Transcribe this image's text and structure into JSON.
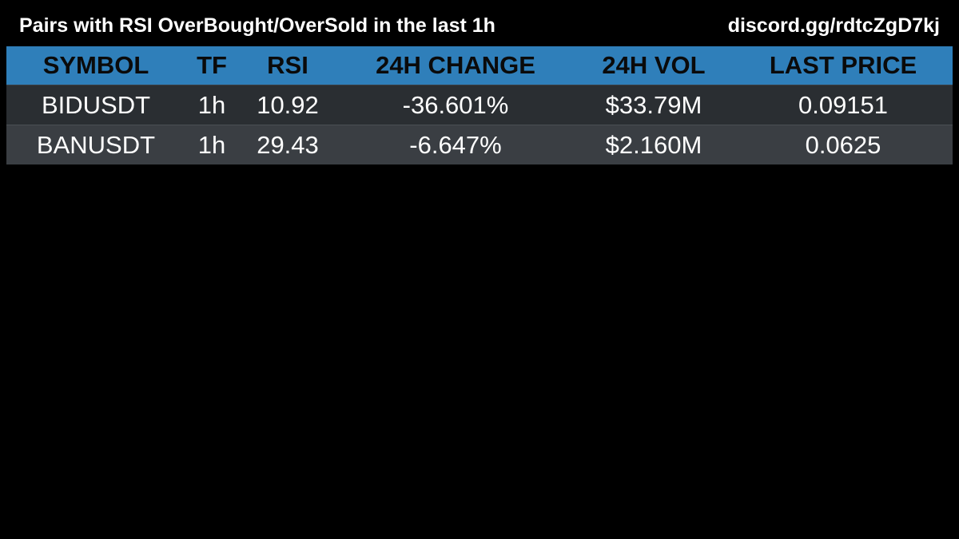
{
  "header": {
    "title": "Pairs with RSI OverBought/OverSold in the last 1h",
    "link": "discord.gg/rdtcZgD7kj"
  },
  "table": {
    "columns": [
      "SYMBOL",
      "TF",
      "RSI",
      "24H CHANGE",
      "24H VOL",
      "LAST PRICE"
    ],
    "rows": [
      {
        "symbol": "BIDUSDT",
        "tf": "1h",
        "rsi": "10.92",
        "change": "-36.601%",
        "vol": "$33.79M",
        "price": "0.09151"
      },
      {
        "symbol": "BANUSDT",
        "tf": "1h",
        "rsi": "29.43",
        "change": "-6.647%",
        "vol": "$2.160M",
        "price": "0.0625"
      }
    ]
  },
  "colors": {
    "header_bg": "#2f7fba",
    "row_odd_bg": "#2a2e32",
    "row_even_bg": "#3a3e43",
    "background": "#000000"
  }
}
